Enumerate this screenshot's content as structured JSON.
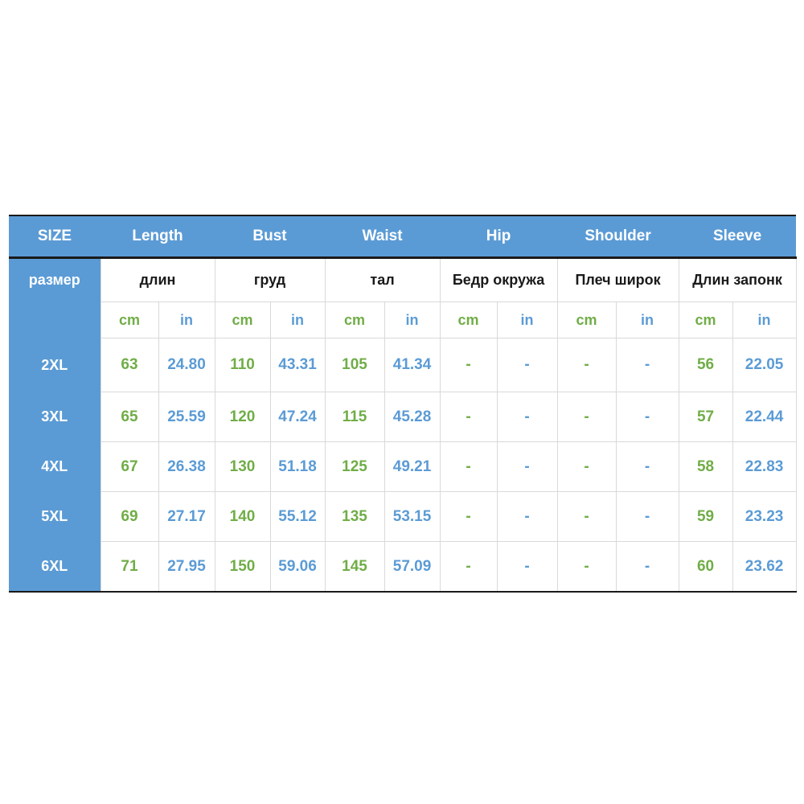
{
  "header": [
    "SIZE",
    "Length",
    "Bust",
    "Waist",
    "Hip",
    "Shoulder",
    "Sleeve"
  ],
  "ru_header": [
    "размер",
    "длин",
    "груд",
    "тал",
    "Бедр окружа",
    "Плеч широк",
    "Длин запонк"
  ],
  "units": {
    "cm": "cm",
    "in": "in"
  },
  "rows": [
    {
      "size": "2XL",
      "values": [
        "63",
        "24.80",
        "110",
        "43.31",
        "105",
        "41.34",
        "-",
        "-",
        "-",
        "-",
        "56",
        "22.05"
      ]
    },
    {
      "size": "3XL",
      "values": [
        "65",
        "25.59",
        "120",
        "47.24",
        "115",
        "45.28",
        "-",
        "-",
        "-",
        "-",
        "57",
        "22.44"
      ]
    },
    {
      "size": "4XL",
      "values": [
        "67",
        "26.38",
        "130",
        "51.18",
        "125",
        "49.21",
        "-",
        "-",
        "-",
        "-",
        "58",
        "22.83"
      ]
    },
    {
      "size": "5XL",
      "values": [
        "69",
        "27.17",
        "140",
        "55.12",
        "135",
        "53.15",
        "-",
        "-",
        "-",
        "-",
        "59",
        "23.23"
      ]
    },
    {
      "size": "6XL",
      "values": [
        "71",
        "27.95",
        "150",
        "59.06",
        "145",
        "57.09",
        "-",
        "-",
        "-",
        "-",
        "60",
        "23.62"
      ]
    }
  ],
  "colors": {
    "header_bg": "#5b9bd5",
    "cm_text": "#70ad47",
    "in_text": "#5b9bd5"
  }
}
